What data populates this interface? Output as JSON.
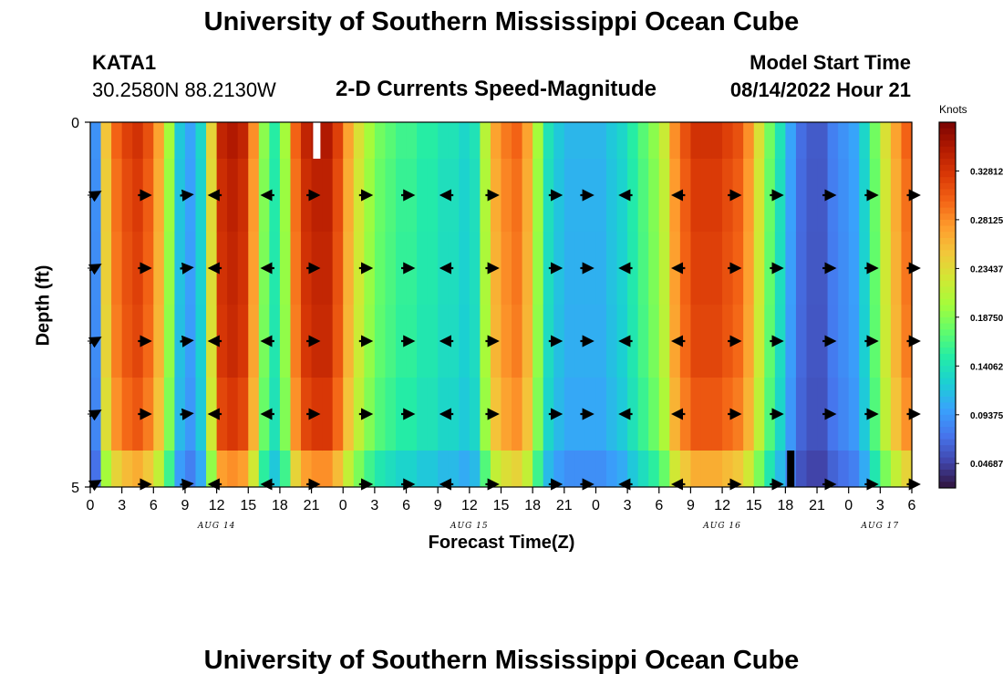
{
  "header": {
    "title": "University of Southern Mississippi Ocean Cube",
    "station": "KATA1",
    "location": "30.2580N  88.2130W",
    "product": "2-D Currents Speed-Magnitude",
    "start_label": "Model Start Time",
    "start_value": "08/14/2022 Hour 21"
  },
  "footer": {
    "title": "University of Southern Mississippi Ocean Cube"
  },
  "chart_data": {
    "type": "heatmap",
    "title": "2-D Currents Speed-Magnitude",
    "xlabel": "Forecast Time(Z)",
    "ylabel": "Depth (ft)",
    "x_hours_range": [
      0,
      78
    ],
    "ylim": [
      0,
      5
    ],
    "y_tick_labels": [
      "0",
      "5"
    ],
    "x_tick_labels": [
      "0",
      "3",
      "6",
      "9",
      "12",
      "15",
      "18",
      "21",
      "0",
      "3",
      "6",
      "9",
      "12",
      "15",
      "18",
      "21",
      "0",
      "3",
      "6",
      "9",
      "12",
      "15",
      "18",
      "21",
      "0",
      "3",
      "6"
    ],
    "day_labels": [
      {
        "label": "AUG 14",
        "hour": 12
      },
      {
        "label": "AUG 15",
        "hour": 36
      },
      {
        "label": "AUG 16",
        "hour": 60
      },
      {
        "label": "AUG 17",
        "hour": 75
      }
    ],
    "depth_bins": [
      0,
      1,
      2,
      3,
      4,
      5
    ],
    "time_columns": 78,
    "column_speed_knots": [
      0.09,
      0.25,
      0.3,
      0.32,
      0.33,
      0.31,
      0.27,
      0.2,
      0.12,
      0.1,
      0.13,
      0.24,
      0.34,
      0.35,
      0.34,
      0.28,
      0.19,
      0.15,
      0.2,
      0.3,
      0.34,
      0.35,
      0.35,
      0.32,
      0.27,
      0.23,
      0.2,
      0.18,
      0.17,
      0.16,
      0.16,
      0.15,
      0.15,
      0.14,
      0.14,
      0.13,
      0.14,
      0.21,
      0.27,
      0.29,
      0.3,
      0.27,
      0.2,
      0.14,
      0.12,
      0.11,
      0.11,
      0.11,
      0.11,
      0.12,
      0.13,
      0.15,
      0.17,
      0.19,
      0.22,
      0.28,
      0.31,
      0.33,
      0.33,
      0.33,
      0.32,
      0.31,
      0.28,
      0.23,
      0.18,
      0.14,
      0.1,
      0.07,
      0.06,
      0.06,
      0.08,
      0.09,
      0.1,
      0.13,
      0.18,
      0.23,
      0.27,
      0.3
    ],
    "depth_speed_factor": [
      1.0,
      0.98,
      0.97,
      0.96,
      0.93,
      0.8
    ],
    "gap_markers": [
      {
        "hour": 21.5,
        "depth_start": 0,
        "depth_end": 0.5,
        "color": "#ffffff"
      },
      {
        "hour": 66.5,
        "depth_start": 4.5,
        "depth_end": 5,
        "color": "#000000"
      }
    ],
    "vector_rows_depth": [
      1,
      2,
      3,
      4,
      5
    ],
    "vector_columns_hour": [
      0,
      5,
      9,
      12,
      17,
      21,
      26,
      30,
      34,
      38,
      44,
      47,
      51,
      56,
      61,
      65,
      70,
      74,
      78
    ],
    "vector_direction_deg": [
      30,
      0,
      5,
      180,
      180,
      0,
      0,
      0,
      180,
      0,
      0,
      0,
      180,
      180,
      0,
      0,
      0,
      0,
      0
    ],
    "colorbar": {
      "units": "Knots",
      "min": 0.0234,
      "max": 0.375,
      "tick_values": [
        0.32812,
        0.28125,
        0.23437,
        0.1875,
        0.14062,
        0.09375,
        0.04687
      ],
      "tick_labels": [
        "0.32812",
        "0.28125",
        "0.23437",
        "0.18750",
        "0.14062",
        "0.09375",
        "0.04687"
      ],
      "colors": [
        "#30123b",
        "#4145ab",
        "#4675ed",
        "#39a2fc",
        "#1bcfd4",
        "#24eca6",
        "#61fc6c",
        "#a4fc3b",
        "#d1e834",
        "#f3c63a",
        "#fe9b2d",
        "#f36315",
        "#d93806",
        "#b11901",
        "#7a0402"
      ]
    }
  }
}
